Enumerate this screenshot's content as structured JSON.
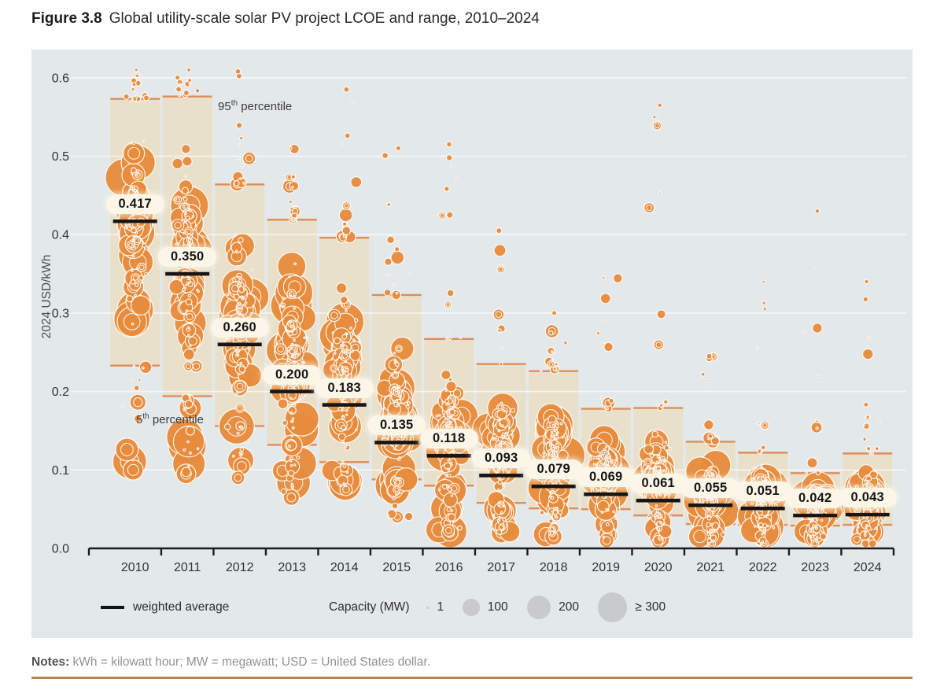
{
  "title": {
    "label": "Figure 3.8",
    "text": "Global utility-scale solar PV project LCOE and range, 2010–2024"
  },
  "y_axis": {
    "title": "2024 USD/kWh",
    "ticks": [
      "0.0",
      "0.1",
      "0.2",
      "0.3",
      "0.4",
      "0.5",
      "0.6"
    ],
    "tick_values": [
      0,
      0.1,
      0.2,
      0.3,
      0.4,
      0.5,
      0.6
    ]
  },
  "annotations": {
    "p95": {
      "num": "95",
      "sup": "th",
      "rest": " percentile"
    },
    "p5": {
      "num": "5",
      "sup": "th",
      "rest": " percentile"
    }
  },
  "legend": {
    "weighted_average_label": "weighted average",
    "capacity_label": "Capacity (MW)",
    "sizes": [
      {
        "label": "1",
        "mw": 1
      },
      {
        "label": "100",
        "mw": 100
      },
      {
        "label": "200",
        "mw": 200
      },
      {
        "label": "≥ 300",
        "mw": 300
      }
    ]
  },
  "notes": {
    "label": "Notes:",
    "text": " kWh = kilowatt hour; MW = megawatt; USD = United States dollar."
  },
  "colors": {
    "panel_bg": "#e3e8ea",
    "band_fill": "#e9e0cb",
    "band_edge": "#dc8e5c",
    "bubble": "#e78b3c",
    "bubble_ring": "#ffffff",
    "gridline": "#ffffff",
    "avg_line": "#141414",
    "pill_bg": "#fcf6e8",
    "legend_circle": "#c8cbce",
    "axis": "#1c1c1c",
    "axis_text": "#333333",
    "rule": "#c07c51"
  },
  "chart_data": {
    "type": "scatter",
    "subtype": "bubble-beeswarm-with-percentile-bands",
    "title": "Global utility-scale solar PV project LCOE and range, 2010–2024",
    "xlabel": "",
    "ylabel": "2024 USD/kWh",
    "ylim": [
      0,
      0.62
    ],
    "grid": true,
    "legend_position": "bottom",
    "bubble_size_unit": "MW",
    "bubble_size_legend": [
      1,
      100,
      200,
      300
    ],
    "categories": [
      "2010",
      "2011",
      "2012",
      "2013",
      "2014",
      "2015",
      "2016",
      "2017",
      "2018",
      "2019",
      "2020",
      "2021",
      "2022",
      "2023",
      "2024"
    ],
    "series": [
      {
        "name": "weighted average",
        "values": [
          0.417,
          0.35,
          0.26,
          0.2,
          0.183,
          0.135,
          0.118,
          0.093,
          0.079,
          0.069,
          0.061,
          0.055,
          0.051,
          0.042,
          0.043
        ]
      },
      {
        "name": "5th percentile",
        "values": [
          0.233,
          0.194,
          0.156,
          0.132,
          0.11,
          0.088,
          0.08,
          0.058,
          0.051,
          0.05,
          0.042,
          0.031,
          0.03,
          0.029,
          0.03
        ]
      },
      {
        "name": "95th percentile",
        "values": [
          0.573,
          0.576,
          0.464,
          0.419,
          0.396,
          0.323,
          0.267,
          0.235,
          0.226,
          0.178,
          0.179,
          0.136,
          0.122,
          0.096,
          0.121
        ]
      },
      {
        "name": "observed minimum (approx.)",
        "values": [
          0.1,
          0.095,
          0.09,
          0.065,
          0.075,
          0.04,
          0.02,
          0.02,
          0.015,
          0.01,
          0.008,
          0.006,
          0.005,
          0.005,
          0.005
        ]
      },
      {
        "name": "observed maximum (approx.)",
        "values": [
          0.61,
          0.61,
          0.608,
          0.51,
          0.585,
          0.51,
          0.515,
          0.405,
          0.3,
          0.345,
          0.565,
          0.245,
          0.34,
          0.43,
          0.34
        ]
      }
    ]
  }
}
